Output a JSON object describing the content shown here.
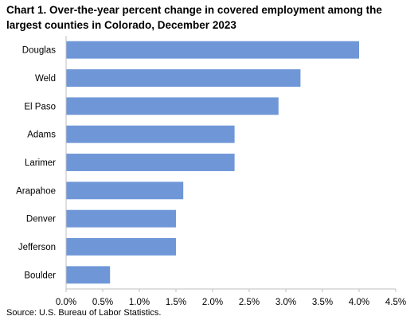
{
  "title": "Chart 1.  Over-the-year percent change in covered employment among the largest counties in Colorado, December 2023",
  "source": "Source: U.S. Bureau of Labor Statistics.",
  "colors": {
    "bar": "#6f97d8",
    "axis": "#bfbfbf"
  },
  "chart_data": {
    "type": "bar",
    "orientation": "horizontal",
    "categories": [
      "Douglas",
      "Weld",
      "El Paso",
      "Adams",
      "Larimer",
      "Arapahoe",
      "Denver",
      "Jefferson",
      "Boulder"
    ],
    "values": [
      4.0,
      3.2,
      2.9,
      2.3,
      2.3,
      1.6,
      1.5,
      1.5,
      0.6
    ],
    "x_ticks": [
      "0.0%",
      "0.5%",
      "1.0%",
      "1.5%",
      "2.0%",
      "2.5%",
      "3.0%",
      "3.5%",
      "4.0%",
      "4.5%"
    ],
    "xlim": [
      0,
      4.5
    ],
    "grid": false,
    "legend": "none"
  }
}
